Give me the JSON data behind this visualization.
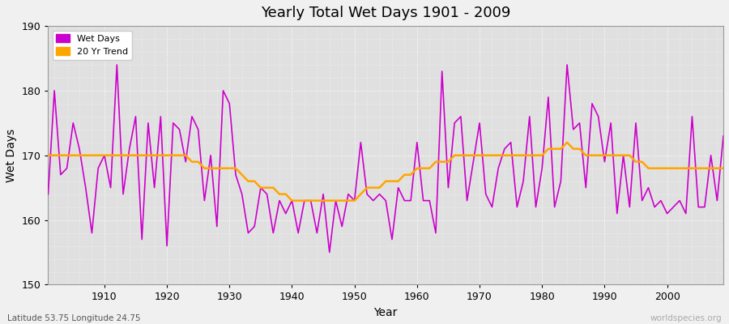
{
  "title": "Yearly Total Wet Days 1901 - 2009",
  "xlabel": "Year",
  "ylabel": "Wet Days",
  "xlim": [
    1901,
    2009
  ],
  "ylim": [
    150,
    190
  ],
  "yticks": [
    150,
    160,
    170,
    180,
    190
  ],
  "xticks": [
    1910,
    1920,
    1930,
    1940,
    1950,
    1960,
    1970,
    1980,
    1990,
    2000
  ],
  "wet_days_color": "#cc00cc",
  "trend_color": "#FFA500",
  "bg_color": "#f0f0f0",
  "plot_bg_color": "#e0e0e0",
  "legend_labels": [
    "Wet Days",
    "20 Yr Trend"
  ],
  "subtitle": "Latitude 53.75 Longitude 24.75",
  "watermark": "worldspecies.org",
  "years": [
    1901,
    1902,
    1903,
    1904,
    1905,
    1906,
    1907,
    1908,
    1909,
    1910,
    1911,
    1912,
    1913,
    1914,
    1915,
    1916,
    1917,
    1918,
    1919,
    1920,
    1921,
    1922,
    1923,
    1924,
    1925,
    1926,
    1927,
    1928,
    1929,
    1930,
    1931,
    1932,
    1933,
    1934,
    1935,
    1936,
    1937,
    1938,
    1939,
    1940,
    1941,
    1942,
    1943,
    1944,
    1945,
    1946,
    1947,
    1948,
    1949,
    1950,
    1951,
    1952,
    1953,
    1954,
    1955,
    1956,
    1957,
    1958,
    1959,
    1960,
    1961,
    1962,
    1963,
    1964,
    1965,
    1966,
    1967,
    1968,
    1969,
    1970,
    1971,
    1972,
    1973,
    1974,
    1975,
    1976,
    1977,
    1978,
    1979,
    1980,
    1981,
    1982,
    1983,
    1984,
    1985,
    1986,
    1987,
    1988,
    1989,
    1990,
    1991,
    1992,
    1993,
    1994,
    1995,
    1996,
    1997,
    1998,
    1999,
    2000,
    2001,
    2002,
    2003,
    2004,
    2005,
    2006,
    2007,
    2008,
    2009
  ],
  "wet_days": [
    164,
    180,
    167,
    168,
    175,
    171,
    165,
    158,
    168,
    170,
    165,
    184,
    164,
    171,
    176,
    157,
    175,
    165,
    176,
    156,
    175,
    174,
    169,
    176,
    174,
    163,
    170,
    159,
    180,
    178,
    167,
    164,
    158,
    159,
    165,
    164,
    158,
    163,
    161,
    163,
    158,
    163,
    163,
    158,
    164,
    155,
    163,
    159,
    164,
    163,
    172,
    164,
    163,
    164,
    163,
    157,
    165,
    163,
    163,
    172,
    163,
    163,
    158,
    183,
    165,
    175,
    176,
    163,
    169,
    175,
    164,
    162,
    168,
    171,
    172,
    162,
    166,
    176,
    162,
    168,
    179,
    162,
    166,
    184,
    174,
    175,
    165,
    178,
    176,
    169,
    175,
    161,
    170,
    162,
    175,
    163,
    165,
    162,
    163,
    161,
    162,
    163,
    161,
    176,
    162,
    162,
    170,
    163,
    173
  ],
  "trend": [
    170,
    170,
    170,
    170,
    170,
    170,
    170,
    170,
    170,
    170,
    170,
    170,
    170,
    170,
    170,
    170,
    170,
    170,
    170,
    170,
    170,
    170,
    170,
    169,
    169,
    168,
    168,
    168,
    168,
    168,
    168,
    167,
    166,
    166,
    165,
    165,
    165,
    164,
    164,
    163,
    163,
    163,
    163,
    163,
    163,
    163,
    163,
    163,
    163,
    163,
    164,
    165,
    165,
    165,
    166,
    166,
    166,
    167,
    167,
    168,
    168,
    168,
    169,
    169,
    169,
    170,
    170,
    170,
    170,
    170,
    170,
    170,
    170,
    170,
    170,
    170,
    170,
    170,
    170,
    170,
    171,
    171,
    171,
    172,
    171,
    171,
    170,
    170,
    170,
    170,
    170,
    170,
    170,
    170,
    169,
    169,
    168,
    168,
    168,
    168,
    168,
    168,
    168,
    168,
    168,
    168,
    168,
    168,
    168
  ]
}
